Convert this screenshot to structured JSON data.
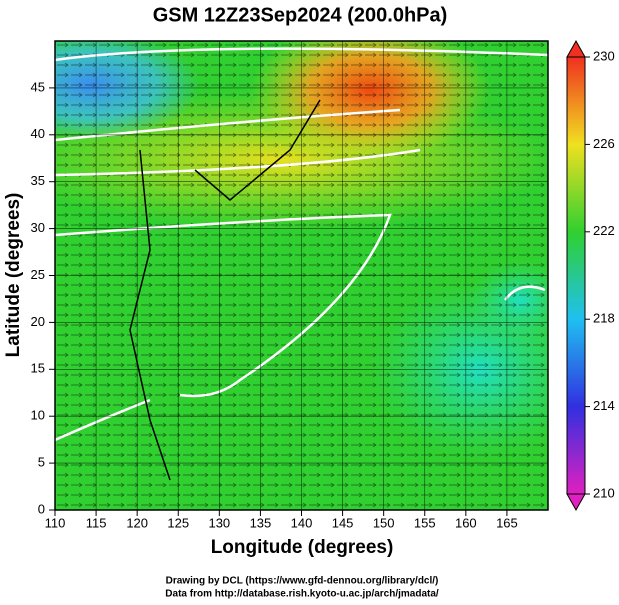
{
  "title": "GSM 12Z23Sep2024 (200.0hPa)",
  "x_axis": {
    "label": "Longitude (degrees)",
    "lim": [
      110,
      170
    ],
    "ticks": [
      110,
      115,
      120,
      125,
      130,
      135,
      140,
      145,
      150,
      155,
      160,
      165
    ]
  },
  "y_axis": {
    "label": "Latitude  (degrees)",
    "lim": [
      0,
      50
    ],
    "ticks": [
      0,
      5,
      10,
      15,
      20,
      25,
      30,
      35,
      40,
      45
    ]
  },
  "colorbar": {
    "lim": [
      210,
      230
    ],
    "ticks": [
      210,
      214,
      218,
      222,
      226,
      230
    ]
  },
  "credits": [
    "Drawing by DCL (https://www.gfd-dennou.org/library/dcl/)",
    "Data from http://database.rish.kyoto-u.ac.jp/arch/jmadata/"
  ]
}
